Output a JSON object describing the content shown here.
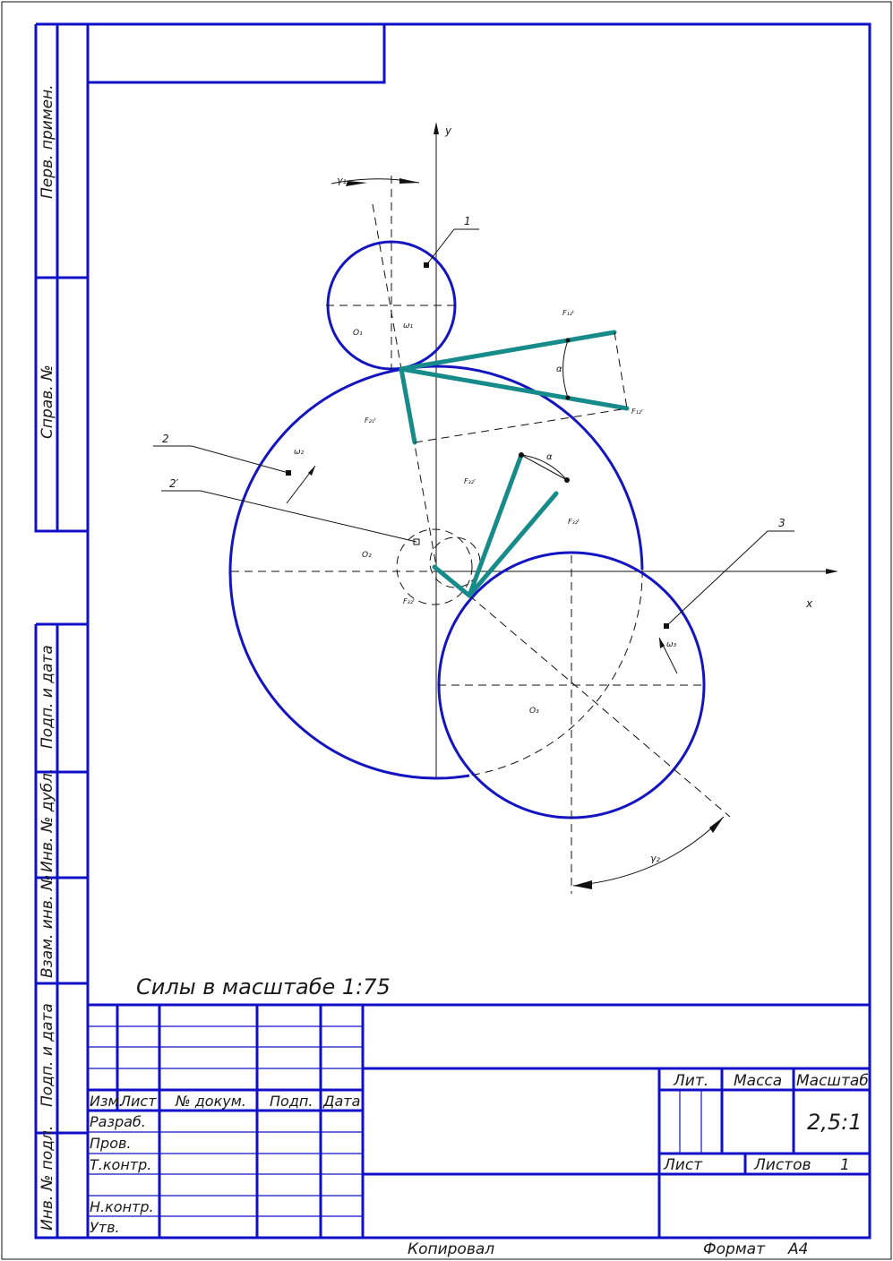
{
  "drawing": {
    "scale_note": "Силы в масштабе 1:75",
    "axis_y": "y",
    "axis_x": "x",
    "labels": {
      "gamma1": "γ₁",
      "gamma2": "γ₂",
      "alpha_top": "α",
      "alpha_mid": "α",
      "omega1": "ω₁",
      "omega2": "ω₂",
      "omega3": "ω₃",
      "o1": "O₁",
      "o2": "O₂",
      "o3": "O₃",
      "f12t": "F₁₂ᵗ",
      "f12r": "F₁₂ʳ",
      "f21t": "F₂₁ᵗ",
      "f32r": "F₃₂ʳ",
      "f32t": "F₃₂ᵗ",
      "f32t_low": "F₃₂ᵗ"
    },
    "callouts": {
      "c1": "1",
      "c2": "2",
      "c2p": "2′",
      "c3": "3"
    }
  },
  "side_strip": {
    "perv_primen": "Перв. примен.",
    "sprav_no": "Справ. №",
    "podp_data_1": "Подп. и дата",
    "inv_dubl": "Инв. № дубл.",
    "vzam_inv": "Взам. инв. №",
    "podp_data_2": "Подп. и дата",
    "inv_podl": "Инв. № подл."
  },
  "title_block": {
    "izm": "Изм.",
    "list": "Лист",
    "no_dokum": "№ докум.",
    "podp": "Подп.",
    "data": "Дата",
    "razrab": "Разраб.",
    "prov": "Пров.",
    "t_kontr": "Т.контр.",
    "n_kontr": "Н.контр.",
    "utv": "Утв.",
    "lit": "Лит.",
    "massa": "Масса",
    "masshtab": "Масштаб",
    "scale_value": "2,5:1",
    "list_label": "Лист",
    "listov_label": "Листов",
    "listov_value": "1"
  },
  "footer": {
    "kopiroval": "Копировал",
    "format_label": "Формат",
    "format_value": "А4"
  },
  "colors": {
    "frame": "#1010c8",
    "force": "#178a8a",
    "line": "#111111"
  }
}
